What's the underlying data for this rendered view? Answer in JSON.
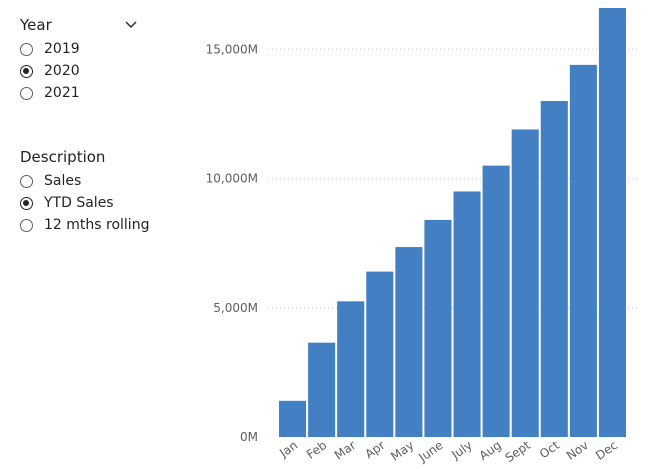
{
  "slicers": {
    "year": {
      "title": "Year",
      "options": [
        {
          "label": "2019",
          "selected": false
        },
        {
          "label": "2020",
          "selected": true
        },
        {
          "label": "2021",
          "selected": false
        }
      ]
    },
    "description": {
      "title": "Description",
      "options": [
        {
          "label": "Sales",
          "selected": false
        },
        {
          "label": "YTD Sales",
          "selected": true
        },
        {
          "label": "12 mths rolling",
          "selected": false
        }
      ]
    }
  },
  "chart_data": {
    "type": "bar",
    "categories": [
      "Jan",
      "Feb",
      "Mar",
      "Apr",
      "May",
      "June",
      "July",
      "Aug",
      "Sept",
      "Oct",
      "Nov",
      "Dec"
    ],
    "values": [
      1400,
      3650,
      5250,
      6400,
      7350,
      8400,
      9500,
      10500,
      11900,
      13000,
      14400,
      16600
    ],
    "y_ticks": [
      0,
      5000,
      10000,
      15000
    ],
    "y_tick_labels": [
      "0M",
      "5,000M",
      "10,000M",
      "15,000M"
    ],
    "ylim": [
      0,
      16600
    ],
    "grid": true,
    "bar_color": "#4280C3",
    "grid_color": "#C8C6C4"
  }
}
